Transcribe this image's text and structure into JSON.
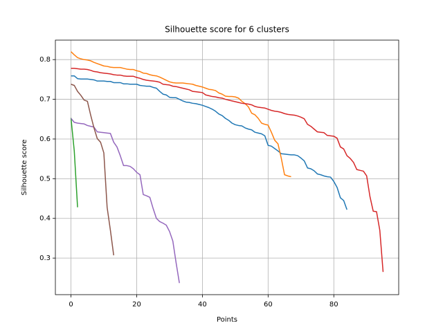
{
  "chart_data": {
    "type": "line",
    "title": "Silhouette score for 6 clusters",
    "xlabel": "Points",
    "ylabel": "Silhouette score",
    "xlim": [
      -4.75,
      99.75
    ],
    "ylim": [
      0.2079,
      0.8491
    ],
    "xticks": [
      0,
      20,
      40,
      60,
      80
    ],
    "yticks": [
      0.3,
      0.4,
      0.5,
      0.6,
      0.7,
      0.8
    ],
    "grid": true,
    "series": [
      {
        "color": "#1f77b4",
        "x": [
          0,
          1,
          2,
          3,
          4,
          5,
          6,
          7,
          8,
          9,
          10,
          11,
          12,
          13,
          14,
          15,
          16,
          17,
          18,
          19,
          20,
          21,
          22,
          23,
          24,
          25,
          26,
          27,
          28,
          29,
          30,
          31,
          32,
          33,
          34,
          35,
          36,
          37,
          38,
          39,
          40,
          41,
          42,
          43,
          44,
          45,
          46,
          47,
          48,
          49,
          50,
          51,
          52,
          53,
          54,
          55,
          56,
          57,
          58,
          59,
          60,
          61,
          62,
          63,
          64,
          65,
          66,
          67,
          68,
          69,
          70,
          71,
          72,
          73,
          74,
          75,
          76,
          77,
          78,
          79,
          80,
          81,
          82,
          83,
          84
        ],
        "values": [
          0.759,
          0.759,
          0.752,
          0.751,
          0.751,
          0.751,
          0.75,
          0.749,
          0.746,
          0.746,
          0.746,
          0.745,
          0.745,
          0.742,
          0.742,
          0.742,
          0.739,
          0.739,
          0.738,
          0.738,
          0.738,
          0.735,
          0.734,
          0.733,
          0.733,
          0.73,
          0.728,
          0.72,
          0.713,
          0.711,
          0.705,
          0.704,
          0.704,
          0.7,
          0.696,
          0.693,
          0.692,
          0.69,
          0.689,
          0.687,
          0.685,
          0.682,
          0.679,
          0.675,
          0.67,
          0.663,
          0.659,
          0.652,
          0.647,
          0.64,
          0.636,
          0.634,
          0.633,
          0.628,
          0.625,
          0.623,
          0.617,
          0.615,
          0.613,
          0.608,
          0.584,
          0.582,
          0.576,
          0.57,
          0.563,
          0.562,
          0.561,
          0.56,
          0.56,
          0.558,
          0.552,
          0.545,
          0.527,
          0.525,
          0.52,
          0.512,
          0.51,
          0.507,
          0.505,
          0.504,
          0.493,
          0.478,
          0.452,
          0.445,
          0.422
        ]
      },
      {
        "color": "#ff7f0e",
        "x": [
          0,
          1,
          2,
          3,
          4,
          5,
          6,
          7,
          8,
          9,
          10,
          11,
          12,
          13,
          14,
          15,
          16,
          17,
          18,
          19,
          20,
          21,
          22,
          23,
          24,
          25,
          26,
          27,
          28,
          29,
          30,
          31,
          32,
          33,
          34,
          35,
          36,
          37,
          38,
          39,
          40,
          41,
          42,
          43,
          44,
          45,
          46,
          47,
          48,
          49,
          50,
          51,
          52,
          53,
          54,
          55,
          56,
          57,
          58,
          59,
          60,
          61,
          62,
          63,
          64,
          65,
          66,
          67
        ],
        "values": [
          0.82,
          0.812,
          0.805,
          0.802,
          0.8,
          0.799,
          0.797,
          0.793,
          0.79,
          0.787,
          0.784,
          0.783,
          0.781,
          0.78,
          0.78,
          0.78,
          0.778,
          0.776,
          0.775,
          0.775,
          0.772,
          0.77,
          0.766,
          0.765,
          0.762,
          0.76,
          0.759,
          0.756,
          0.752,
          0.748,
          0.744,
          0.742,
          0.741,
          0.741,
          0.741,
          0.74,
          0.739,
          0.738,
          0.735,
          0.733,
          0.731,
          0.728,
          0.725,
          0.724,
          0.722,
          0.716,
          0.713,
          0.708,
          0.707,
          0.707,
          0.706,
          0.703,
          0.695,
          0.689,
          0.681,
          0.665,
          0.661,
          0.652,
          0.64,
          0.637,
          0.635,
          0.617,
          0.597,
          0.588,
          0.552,
          0.51,
          0.507,
          0.505
        ]
      },
      {
        "color": "#2ca02c",
        "x": [
          0,
          1,
          2
        ],
        "values": [
          0.653,
          0.57,
          0.428
        ]
      },
      {
        "color": "#d62728",
        "x": [
          0,
          1,
          2,
          3,
          4,
          5,
          6,
          7,
          8,
          9,
          10,
          11,
          12,
          13,
          14,
          15,
          16,
          17,
          18,
          19,
          20,
          21,
          22,
          23,
          24,
          25,
          26,
          27,
          28,
          29,
          30,
          31,
          32,
          33,
          34,
          35,
          36,
          37,
          38,
          39,
          40,
          41,
          42,
          43,
          44,
          45,
          46,
          47,
          48,
          49,
          50,
          51,
          52,
          53,
          54,
          55,
          56,
          57,
          58,
          59,
          60,
          61,
          62,
          63,
          64,
          65,
          66,
          67,
          68,
          69,
          70,
          71,
          72,
          73,
          74,
          75,
          76,
          77,
          78,
          79,
          80,
          81,
          82,
          83,
          84,
          85,
          86,
          87,
          88,
          89,
          90,
          91,
          92,
          93,
          94,
          95
        ],
        "values": [
          0.778,
          0.778,
          0.777,
          0.776,
          0.776,
          0.775,
          0.773,
          0.77,
          0.769,
          0.767,
          0.766,
          0.765,
          0.764,
          0.762,
          0.761,
          0.761,
          0.759,
          0.758,
          0.758,
          0.758,
          0.755,
          0.753,
          0.75,
          0.748,
          0.747,
          0.746,
          0.745,
          0.743,
          0.738,
          0.737,
          0.736,
          0.733,
          0.732,
          0.73,
          0.728,
          0.726,
          0.724,
          0.72,
          0.719,
          0.718,
          0.717,
          0.711,
          0.709,
          0.707,
          0.706,
          0.704,
          0.703,
          0.7,
          0.698,
          0.696,
          0.694,
          0.692,
          0.69,
          0.689,
          0.688,
          0.686,
          0.682,
          0.68,
          0.679,
          0.678,
          0.675,
          0.672,
          0.67,
          0.669,
          0.667,
          0.664,
          0.662,
          0.661,
          0.66,
          0.658,
          0.655,
          0.651,
          0.637,
          0.632,
          0.625,
          0.618,
          0.617,
          0.616,
          0.609,
          0.608,
          0.607,
          0.602,
          0.58,
          0.575,
          0.558,
          0.551,
          0.541,
          0.523,
          0.521,
          0.519,
          0.507,
          0.455,
          0.418,
          0.417,
          0.37,
          0.265
        ]
      },
      {
        "color": "#9467bd",
        "x": [
          0,
          1,
          2,
          3,
          4,
          5,
          6,
          7,
          8,
          9,
          10,
          11,
          12,
          13,
          14,
          15,
          16,
          17,
          18,
          19,
          20,
          21,
          22,
          23,
          24,
          25,
          26,
          27,
          28,
          29,
          30,
          31,
          32,
          33
        ],
        "values": [
          0.652,
          0.642,
          0.64,
          0.639,
          0.638,
          0.634,
          0.632,
          0.63,
          0.618,
          0.617,
          0.616,
          0.615,
          0.614,
          0.592,
          0.58,
          0.558,
          0.533,
          0.533,
          0.531,
          0.525,
          0.516,
          0.51,
          0.46,
          0.457,
          0.453,
          0.425,
          0.4,
          0.392,
          0.388,
          0.383,
          0.367,
          0.343,
          0.288,
          0.237
        ]
      },
      {
        "color": "#8c564b",
        "x": [
          0,
          1,
          2,
          3,
          4,
          5,
          6,
          7,
          8,
          9,
          10,
          11,
          12,
          13
        ],
        "values": [
          0.738,
          0.735,
          0.72,
          0.71,
          0.698,
          0.695,
          0.66,
          0.628,
          0.601,
          0.592,
          0.565,
          0.428,
          0.37,
          0.307
        ]
      }
    ]
  }
}
